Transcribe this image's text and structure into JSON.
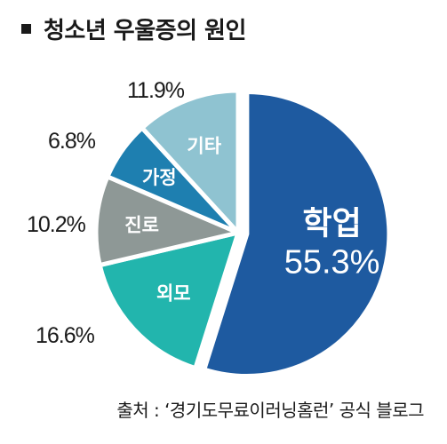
{
  "colors": {
    "study": "#1e5aa0",
    "appearance": "#22b5ad",
    "career": "#8e9896",
    "family": "#1e7fb0",
    "other": "#8fc3d1"
  },
  "chart_data": {
    "type": "pie",
    "title": "청소년 우울증의 원인",
    "slices": [
      {
        "category": "학업",
        "value": 55.3,
        "label": "55.3%"
      },
      {
        "category": "외모",
        "value": 16.6,
        "label": "16.6%"
      },
      {
        "category": "진로",
        "value": 10.2,
        "label": "10.2%"
      },
      {
        "category": "가정",
        "value": 6.8,
        "label": "6.8%"
      },
      {
        "category": "기타",
        "value": 11.9,
        "label": "11.9%"
      }
    ],
    "legend": "none"
  },
  "source": "출처 : ‘경기도무료이러닝홈런’ 공식 블로그"
}
